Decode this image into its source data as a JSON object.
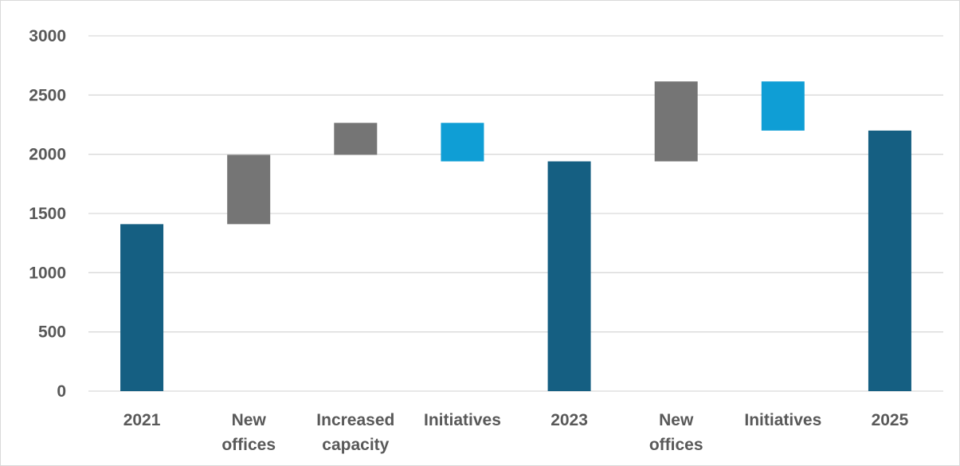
{
  "chart_data": {
    "type": "bar",
    "subtype": "waterfall",
    "title": "",
    "xlabel": "",
    "ylabel": "",
    "ylim": [
      0,
      3000
    ],
    "yticks": [
      "0",
      "500",
      "1000",
      "1500",
      "2000",
      "2500",
      "3000"
    ],
    "grid": true,
    "categories": [
      "2021",
      "New offices",
      "Increased capacity",
      "Initiatives",
      "2023",
      "New offices",
      "Initiatives",
      "2025"
    ],
    "bars": [
      {
        "category": "2021",
        "kind": "total",
        "start": 0,
        "end": 1410
      },
      {
        "category": "New offices",
        "kind": "increase",
        "start": 1410,
        "end": 1995
      },
      {
        "category": "Increased capacity",
        "kind": "increase",
        "start": 1995,
        "end": 2265
      },
      {
        "category": "Initiatives",
        "kind": "decrease",
        "start": 2265,
        "end": 1940
      },
      {
        "category": "2023",
        "kind": "total",
        "start": 0,
        "end": 1940
      },
      {
        "category": "New offices",
        "kind": "increase",
        "start": 1940,
        "end": 2615
      },
      {
        "category": "Initiatives",
        "kind": "decrease",
        "start": 2615,
        "end": 2200
      },
      {
        "category": "2025",
        "kind": "total",
        "start": 0,
        "end": 2200
      }
    ],
    "colors": {
      "total": "#155f82",
      "increase": "#757575",
      "decrease": "#0f9ed5",
      "grid": "#d9d9d9",
      "text": "#595959"
    }
  }
}
